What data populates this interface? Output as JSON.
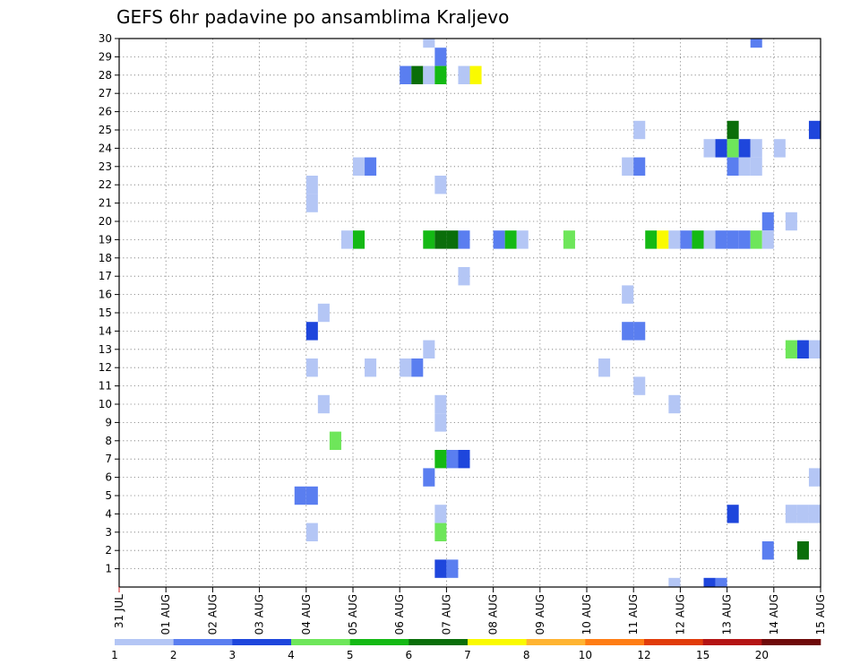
{
  "chart_data": {
    "type": "heatmap",
    "title": "GEFS 6hr padavine po ansamblima Kraljevo",
    "xlabel": "",
    "ylabel": "",
    "x_tick_labels": [
      "31 JUL",
      "01 AUG",
      "02 AUG",
      "03 AUG",
      "04 AUG",
      "05 AUG",
      "06 AUG",
      "07 AUG",
      "08 AUG",
      "09 AUG",
      "10 AUG",
      "11 AUG",
      "12 AUG",
      "13 AUG",
      "14 AUG",
      "15 AUG"
    ],
    "x_range_days": [
      0,
      15
    ],
    "y_range": [
      0,
      30
    ],
    "y_tick_labels": [
      "1",
      "2",
      "3",
      "4",
      "5",
      "6",
      "7",
      "8",
      "9",
      "10",
      "11",
      "12",
      "13",
      "14",
      "15",
      "16",
      "17",
      "18",
      "19",
      "20",
      "21",
      "22",
      "23",
      "24",
      "25",
      "26",
      "27",
      "28",
      "29",
      "30"
    ],
    "grid": true,
    "colorbar": {
      "labels": [
        "1",
        "2",
        "3",
        "4",
        "5",
        "6",
        "7",
        "8",
        "10",
        "12",
        "15",
        "20"
      ],
      "colors": [
        "#b4c6f5",
        "#5a7ef0",
        "#1e46dc",
        "#6ee65a",
        "#14b914",
        "#0a6e0a",
        "#fafa00",
        "#ffb432",
        "#ff7d14",
        "#e13c0a",
        "#b41414",
        "#6e0a0a"
      ]
    },
    "cells": [
      {
        "t": 6.5,
        "m": 30,
        "c": 1
      },
      {
        "t": 13.5,
        "m": 30,
        "c": 2
      },
      {
        "t": 6.75,
        "m": 29,
        "c": 2
      },
      {
        "t": 6.0,
        "m": 28,
        "c": 2
      },
      {
        "t": 6.25,
        "m": 28,
        "c": 6
      },
      {
        "t": 6.5,
        "m": 28,
        "c": 1
      },
      {
        "t": 6.75,
        "m": 28,
        "c": 5
      },
      {
        "t": 7.25,
        "m": 28,
        "c": 1
      },
      {
        "t": 7.5,
        "m": 28,
        "c": 7
      },
      {
        "t": 11.0,
        "m": 25,
        "c": 1
      },
      {
        "t": 13.0,
        "m": 25,
        "c": 6
      },
      {
        "t": 14.75,
        "m": 25,
        "c": 3
      },
      {
        "t": 12.5,
        "m": 24,
        "c": 1
      },
      {
        "t": 12.75,
        "m": 24,
        "c": 3
      },
      {
        "t": 13.0,
        "m": 24,
        "c": 4
      },
      {
        "t": 13.25,
        "m": 24,
        "c": 3
      },
      {
        "t": 13.5,
        "m": 24,
        "c": 1
      },
      {
        "t": 14.0,
        "m": 24,
        "c": 1
      },
      {
        "t": 5.0,
        "m": 23,
        "c": 1
      },
      {
        "t": 5.25,
        "m": 23,
        "c": 2
      },
      {
        "t": 10.75,
        "m": 23,
        "c": 1
      },
      {
        "t": 11.0,
        "m": 23,
        "c": 2
      },
      {
        "t": 13.0,
        "m": 23,
        "c": 2
      },
      {
        "t": 13.25,
        "m": 23,
        "c": 1
      },
      {
        "t": 13.5,
        "m": 23,
        "c": 1
      },
      {
        "t": 4.0,
        "m": 22,
        "c": 1
      },
      {
        "t": 6.75,
        "m": 22,
        "c": 1
      },
      {
        "t": 4.0,
        "m": 21,
        "c": 1
      },
      {
        "t": 13.75,
        "m": 20,
        "c": 2
      },
      {
        "t": 14.25,
        "m": 20,
        "c": 1
      },
      {
        "t": 4.75,
        "m": 19,
        "c": 1
      },
      {
        "t": 5.0,
        "m": 19,
        "c": 5
      },
      {
        "t": 6.5,
        "m": 19,
        "c": 5
      },
      {
        "t": 6.75,
        "m": 19,
        "c": 6
      },
      {
        "t": 7.0,
        "m": 19,
        "c": 6
      },
      {
        "t": 7.25,
        "m": 19,
        "c": 2
      },
      {
        "t": 8.0,
        "m": 19,
        "c": 2
      },
      {
        "t": 8.25,
        "m": 19,
        "c": 5
      },
      {
        "t": 8.5,
        "m": 19,
        "c": 1
      },
      {
        "t": 9.5,
        "m": 19,
        "c": 4
      },
      {
        "t": 11.25,
        "m": 19,
        "c": 5
      },
      {
        "t": 11.5,
        "m": 19,
        "c": 7
      },
      {
        "t": 11.75,
        "m": 19,
        "c": 1
      },
      {
        "t": 12.0,
        "m": 19,
        "c": 2
      },
      {
        "t": 12.25,
        "m": 19,
        "c": 5
      },
      {
        "t": 12.5,
        "m": 19,
        "c": 1
      },
      {
        "t": 12.75,
        "m": 19,
        "c": 2
      },
      {
        "t": 13.0,
        "m": 19,
        "c": 2
      },
      {
        "t": 13.25,
        "m": 19,
        "c": 2
      },
      {
        "t": 13.5,
        "m": 19,
        "c": 4
      },
      {
        "t": 13.75,
        "m": 19,
        "c": 1
      },
      {
        "t": 7.25,
        "m": 17,
        "c": 1
      },
      {
        "t": 10.75,
        "m": 16,
        "c": 1
      },
      {
        "t": 4.25,
        "m": 15,
        "c": 1
      },
      {
        "t": 4.0,
        "m": 14,
        "c": 3
      },
      {
        "t": 10.75,
        "m": 14,
        "c": 2
      },
      {
        "t": 11.0,
        "m": 14,
        "c": 2
      },
      {
        "t": 6.5,
        "m": 13,
        "c": 1
      },
      {
        "t": 14.25,
        "m": 13,
        "c": 4
      },
      {
        "t": 14.5,
        "m": 13,
        "c": 3
      },
      {
        "t": 14.75,
        "m": 13,
        "c": 1
      },
      {
        "t": 4.0,
        "m": 12,
        "c": 1
      },
      {
        "t": 5.25,
        "m": 12,
        "c": 1
      },
      {
        "t": 6.0,
        "m": 12,
        "c": 1
      },
      {
        "t": 6.25,
        "m": 12,
        "c": 2
      },
      {
        "t": 10.25,
        "m": 12,
        "c": 1
      },
      {
        "t": 11.0,
        "m": 11,
        "c": 1
      },
      {
        "t": 4.25,
        "m": 10,
        "c": 1
      },
      {
        "t": 6.75,
        "m": 10,
        "c": 1
      },
      {
        "t": 11.75,
        "m": 10,
        "c": 1
      },
      {
        "t": 6.75,
        "m": 9,
        "c": 1
      },
      {
        "t": 4.5,
        "m": 8,
        "c": 4
      },
      {
        "t": 6.75,
        "m": 7,
        "c": 5
      },
      {
        "t": 7.0,
        "m": 7,
        "c": 2
      },
      {
        "t": 7.25,
        "m": 7,
        "c": 3
      },
      {
        "t": 6.5,
        "m": 6,
        "c": 2
      },
      {
        "t": 14.75,
        "m": 6,
        "c": 1
      },
      {
        "t": 3.75,
        "m": 5,
        "c": 2
      },
      {
        "t": 4.0,
        "m": 5,
        "c": 2
      },
      {
        "t": 6.75,
        "m": 4,
        "c": 1
      },
      {
        "t": 13.0,
        "m": 4,
        "c": 3
      },
      {
        "t": 14.25,
        "m": 4,
        "c": 1
      },
      {
        "t": 14.5,
        "m": 4,
        "c": 1
      },
      {
        "t": 14.75,
        "m": 4,
        "c": 1
      },
      {
        "t": 4.0,
        "m": 3,
        "c": 1
      },
      {
        "t": 6.75,
        "m": 3,
        "c": 4
      },
      {
        "t": 13.75,
        "m": 2,
        "c": 2
      },
      {
        "t": 14.5,
        "m": 2,
        "c": 6
      },
      {
        "t": 6.75,
        "m": 1,
        "c": 3
      },
      {
        "t": 7.0,
        "m": 1,
        "c": 2
      },
      {
        "t": 11.75,
        "m": 0,
        "c": 1
      },
      {
        "t": 12.5,
        "m": 0,
        "c": 3
      },
      {
        "t": 12.75,
        "m": 0,
        "c": 2
      }
    ]
  }
}
